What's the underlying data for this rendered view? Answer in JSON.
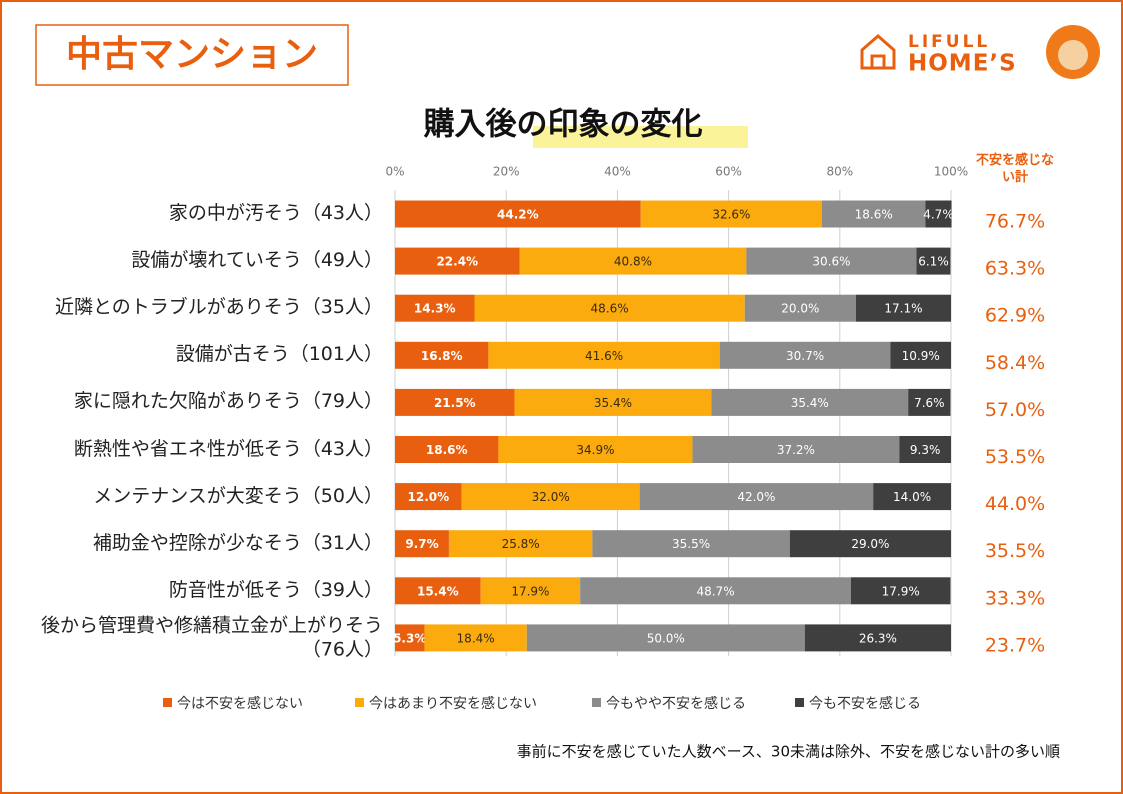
{
  "header": {
    "badge": "中古マンション",
    "logo_line1": "LIFULL",
    "logo_line2": "HOME’S"
  },
  "chart_data": {
    "type": "stacked-barh",
    "title": "購入後の印象の変化",
    "categories": [
      "家の中が汚そう（43人）",
      "設備が壊れていそう（49人）",
      "近隣とのトラブルがありそう（35人）",
      "設備が古そう（101人）",
      "家に隠れた欠陥がありそう（79人）",
      "断熱性や省エネ性が低そう（43人）",
      "メンテナンスが大変そう（50人）",
      "補助金や控除が少なそう（31人）",
      "防音性が低そう（39人）",
      "後から管理費や修繕積立金が上がりそう（76人）"
    ],
    "series": [
      {
        "name": "今は不安を感じない",
        "color": "#e8600f",
        "label_color": "#ffffff",
        "values": [
          44.2,
          22.4,
          14.3,
          16.8,
          21.5,
          18.6,
          12.0,
          9.7,
          15.4,
          5.3
        ],
        "value_labels": [
          "44.2%",
          "22.4%",
          "14.3%",
          "16.8%",
          "21.5%",
          "18.6%",
          "12.0%",
          "9.7%",
          "15.4%",
          "5.3%"
        ]
      },
      {
        "name": "今はあまり不安を感じない",
        "color": "#fbab0e",
        "label_color": "#3a2a10",
        "values": [
          32.6,
          40.8,
          48.6,
          41.6,
          35.4,
          34.9,
          32.0,
          25.8,
          17.9,
          18.4
        ],
        "value_labels": [
          "32.6%",
          "40.8%",
          "48.6%",
          "41.6%",
          "35.4%",
          "34.9%",
          "32.0%",
          "25.8%",
          "17.9%",
          "18.4%"
        ]
      },
      {
        "name": "今もやや不安を感じる",
        "color": "#8c8c8c",
        "label_color": "#ffffff",
        "values": [
          18.6,
          30.6,
          20.0,
          30.7,
          35.4,
          37.2,
          42.0,
          35.5,
          48.7,
          50.0
        ],
        "value_labels": [
          "18.6%",
          "30.6%",
          "20.0%",
          "30.7%",
          "35.4%",
          "37.2%",
          "42.0%",
          "35.5%",
          "48.7%",
          "50.0%"
        ]
      },
      {
        "name": "今も不安を感じる",
        "color": "#3f3f3f",
        "label_color": "#ffffff",
        "values": [
          4.7,
          6.1,
          17.1,
          10.9,
          7.6,
          9.3,
          14.0,
          29.0,
          17.9,
          26.3
        ],
        "value_labels": [
          "4.7%",
          "6.1%",
          "17.1%",
          "10.9%",
          "7.6%",
          "9.3%",
          "14.0%",
          "29.0%",
          "17.9%",
          "26.3%"
        ]
      }
    ],
    "xlim": [
      0,
      100
    ],
    "xticks": [
      {
        "value": 0,
        "label": "0%"
      },
      {
        "value": 20,
        "label": "20%"
      },
      {
        "value": 40,
        "label": "40%"
      },
      {
        "value": 60,
        "label": "60%"
      },
      {
        "value": 80,
        "label": "80%"
      },
      {
        "value": 100,
        "label": "100%"
      }
    ],
    "grid": true,
    "totals": {
      "title": "不安を感じない計",
      "color": "#e8600f",
      "values": [
        76.7,
        63.3,
        62.9,
        58.4,
        57.0,
        53.5,
        44.0,
        35.5,
        33.3,
        23.7
      ],
      "value_labels": [
        "76.7%",
        "63.3%",
        "62.9%",
        "58.4%",
        "57.0%",
        "53.5%",
        "44.0%",
        "35.5%",
        "33.3%",
        "23.7%"
      ]
    },
    "legend": "bottom",
    "note": "事前に不安を感じていた人数ベース、30未満は除外、不安を感じない計の多い順"
  }
}
